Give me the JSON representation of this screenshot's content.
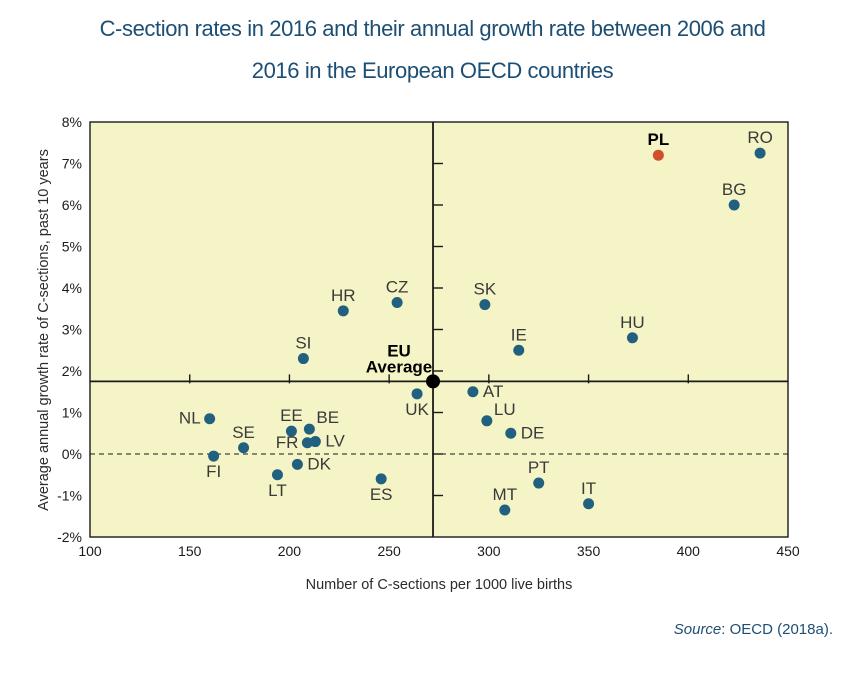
{
  "title": {
    "line1": "C-section rates in 2016 and their annual growth rate between 2006 and",
    "line2": "2016 in the European OECD countries"
  },
  "source": {
    "prefix": "Source",
    "rest": ": OECD (2018a)."
  },
  "chart_data": {
    "type": "scatter",
    "title": "C-section rates in 2016 and their annual growth rate between 2006 and 2016 in the European OECD countries",
    "xlabel": "Number of C-sections per 1000 live births",
    "ylabel": "Average annual growth rate of C-sections, past 10 years",
    "xlim": [
      100,
      450
    ],
    "ylim": [
      -2,
      8
    ],
    "x_ticks": [
      100,
      150,
      200,
      250,
      300,
      350,
      400,
      450
    ],
    "y_ticks": [
      {
        "v": 8,
        "label": "8%"
      },
      {
        "v": 7,
        "label": "7%"
      },
      {
        "v": 6,
        "label": "6%"
      },
      {
        "v": 5,
        "label": "5%"
      },
      {
        "v": 4,
        "label": "4%"
      },
      {
        "v": 3,
        "label": "3%"
      },
      {
        "v": 2,
        "label": "2%"
      },
      {
        "v": 1,
        "label": "1%"
      },
      {
        "v": 0,
        "label": "0%"
      },
      {
        "v": -1,
        "label": "-1%"
      },
      {
        "v": -2,
        "label": "-2%"
      }
    ],
    "reference": {
      "eu_average_x": 272,
      "eu_average_y": 1.75,
      "zero_dashed_y": 0,
      "vline_tick_ys": [
        -1,
        0,
        1,
        2,
        3,
        4,
        5,
        6,
        7
      ],
      "hline_tick_xs": [
        150,
        200,
        250,
        300,
        350,
        400
      ]
    },
    "points": [
      {
        "code": "NL",
        "x": 160,
        "y": 0.85,
        "label_pos": "left"
      },
      {
        "code": "FI",
        "x": 162,
        "y": -0.05,
        "label_pos": "bottom"
      },
      {
        "code": "SE",
        "x": 177,
        "y": 0.15,
        "label_pos": "top"
      },
      {
        "code": "LT",
        "x": 194,
        "y": -0.5,
        "label_pos": "bottom"
      },
      {
        "code": "EE",
        "x": 201,
        "y": 0.55,
        "label_pos": "top"
      },
      {
        "code": "DK",
        "x": 204,
        "y": -0.25,
        "label_pos": "right"
      },
      {
        "code": "SI",
        "x": 207,
        "y": 2.3,
        "label_pos": "top"
      },
      {
        "code": "FR",
        "x": 209,
        "y": 0.27,
        "label_pos": "left"
      },
      {
        "code": "BE",
        "x": 210,
        "y": 0.6,
        "label_pos": "top-right"
      },
      {
        "code": "LV",
        "x": 213,
        "y": 0.3,
        "label_pos": "right"
      },
      {
        "code": "HR",
        "x": 227,
        "y": 3.45,
        "label_pos": "top"
      },
      {
        "code": "ES",
        "x": 246,
        "y": -0.6,
        "label_pos": "bottom"
      },
      {
        "code": "CZ",
        "x": 254,
        "y": 3.65,
        "label_pos": "top"
      },
      {
        "code": "UK",
        "x": 264,
        "y": 1.45,
        "label_pos": "bottom"
      },
      {
        "code": "EU Average",
        "x": 272,
        "y": 1.75,
        "label_pos": "left-two-line",
        "label_lines": [
          "EU",
          "Average"
        ],
        "highlight": "eu",
        "bold": true
      },
      {
        "code": "AT",
        "x": 292,
        "y": 1.5,
        "label_pos": "right"
      },
      {
        "code": "SK",
        "x": 298,
        "y": 3.6,
        "label_pos": "top"
      },
      {
        "code": "LU",
        "x": 299,
        "y": 0.8,
        "label_pos": "top-right"
      },
      {
        "code": "MT",
        "x": 308,
        "y": -1.35,
        "label_pos": "top"
      },
      {
        "code": "DE",
        "x": 311,
        "y": 0.5,
        "label_pos": "right"
      },
      {
        "code": "IE",
        "x": 315,
        "y": 2.5,
        "label_pos": "top"
      },
      {
        "code": "PT",
        "x": 325,
        "y": -0.7,
        "label_pos": "top"
      },
      {
        "code": "IT",
        "x": 350,
        "y": -1.2,
        "label_pos": "top"
      },
      {
        "code": "HU",
        "x": 372,
        "y": 2.8,
        "label_pos": "top"
      },
      {
        "code": "PL",
        "x": 385,
        "y": 7.2,
        "label_pos": "top",
        "highlight": "red",
        "bold": true
      },
      {
        "code": "BG",
        "x": 423,
        "y": 6.0,
        "label_pos": "top"
      },
      {
        "code": "RO",
        "x": 436,
        "y": 7.25,
        "label_pos": "top"
      }
    ],
    "colors": {
      "plot_bg": "#F5F4C6",
      "point": "#21617F",
      "highlight_point": "#D1502C",
      "eu_point": "#000000",
      "line": "#1a1a1a",
      "label": "#3a3a3a",
      "bold_label": "#000000",
      "tick_label": "#1a1a1a",
      "title_text": "#1D4E74"
    },
    "legend": "none",
    "grid": "off"
  }
}
